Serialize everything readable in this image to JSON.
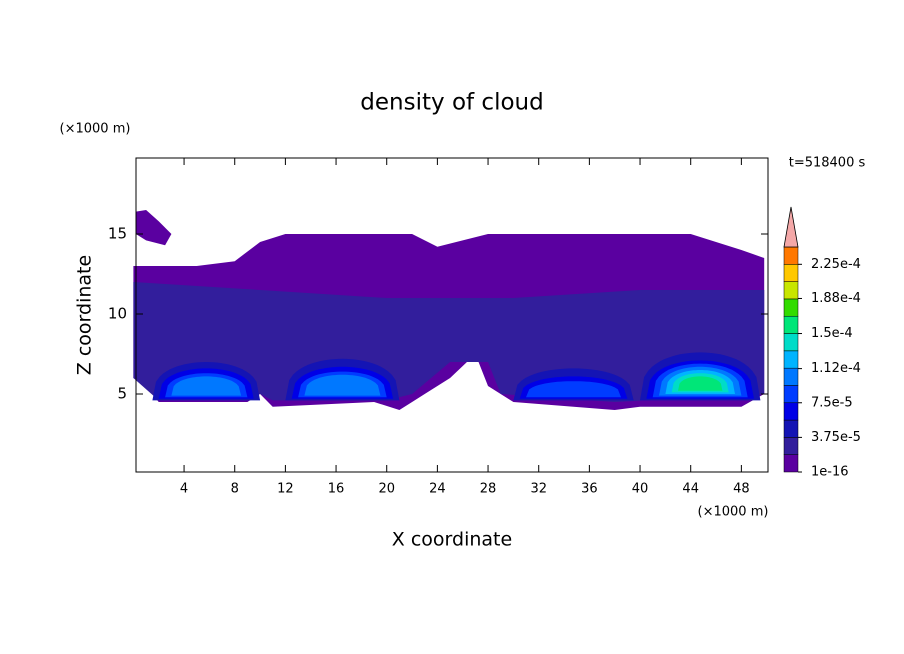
{
  "chart_data": {
    "type": "contour",
    "title": "density of cloud",
    "xlabel": "X coordinate",
    "ylabel": "Z coordinate",
    "x_unit": "(×1000 m)",
    "y_unit": "(×1000 m)",
    "annotation": "t=518400 s",
    "xlim": [
      0,
      50
    ],
    "ylim": [
      0,
      20
    ],
    "xticks": [
      4,
      8,
      12,
      16,
      20,
      24,
      28,
      32,
      36,
      40,
      44,
      48
    ],
    "yticks": [
      5,
      10,
      15
    ],
    "colorbar": {
      "clim": [
        1e-16,
        0.00024375
      ],
      "colors": [
        "#5a00a0",
        "#321e9c",
        "#1414b4",
        "#0000e6",
        "#003cff",
        "#0078ff",
        "#00b4ff",
        "#00dcc8",
        "#00e678",
        "#32dc00",
        "#c8e600",
        "#ffc800",
        "#ff7800"
      ],
      "extend_color": "#f4a8a8",
      "ticks": [
        1e-16,
        {
          "value": 3.75e-05,
          "label": "3.75e-5"
        },
        {
          "value": 7.5e-05,
          "label": "7.5e-5"
        },
        {
          "value": 0.000112,
          "label": "1.12e-4"
        },
        {
          "value": 0.00015,
          "label": "1.5e-4"
        },
        {
          "value": 0.000188,
          "label": "1.88e-4"
        },
        {
          "value": 0.000225,
          "label": "2.25e-4"
        }
      ]
    }
  }
}
